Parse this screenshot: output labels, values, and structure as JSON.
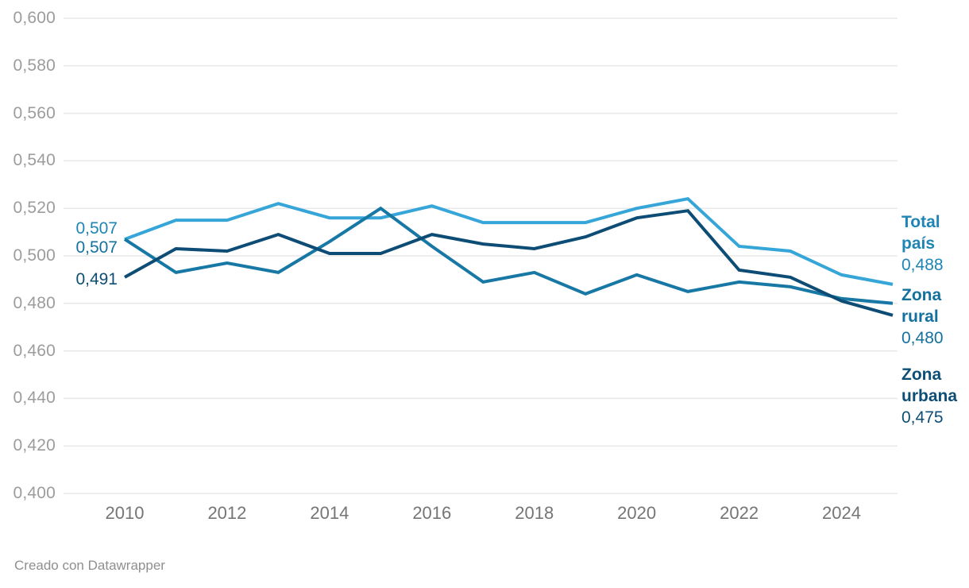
{
  "chart_data": {
    "type": "line",
    "x": [
      2010,
      2011,
      2012,
      2013,
      2014,
      2015,
      2016,
      2017,
      2018,
      2019,
      2020,
      2021,
      2022,
      2023,
      2024,
      2025
    ],
    "series": [
      {
        "name": "Total país",
        "values": [
          0.507,
          0.515,
          0.515,
          0.522,
          0.516,
          0.516,
          0.521,
          0.514,
          0.514,
          0.514,
          0.52,
          0.524,
          0.504,
          0.502,
          0.492,
          0.488
        ],
        "color": "#36a5d8",
        "label_color": "#1f85b4",
        "start_label": "0,507",
        "end_label": "0,488"
      },
      {
        "name": "Zona rural",
        "values": [
          0.507,
          0.493,
          0.497,
          0.493,
          0.506,
          0.52,
          0.504,
          0.489,
          0.493,
          0.484,
          0.492,
          0.485,
          0.489,
          0.487,
          0.482,
          0.48
        ],
        "color": "#1878a5",
        "label_color": "#14719e",
        "start_label": "0,507",
        "end_label": "0,480"
      },
      {
        "name": "Zona urbana",
        "values": [
          0.491,
          0.503,
          0.502,
          0.509,
          0.501,
          0.501,
          0.509,
          0.505,
          0.503,
          0.508,
          0.516,
          0.519,
          0.494,
          0.491,
          0.481,
          0.475
        ],
        "color": "#0d4d75",
        "label_color": "#0e4e76",
        "start_label": "0,491",
        "end_label": "0,475"
      }
    ],
    "ylim": [
      0.4,
      0.6
    ],
    "y_ticks": [
      "0,600",
      "0,580",
      "0,560",
      "0,540",
      "0,520",
      "0,500",
      "0,480",
      "0,460",
      "0,440",
      "0,420",
      "0,400"
    ],
    "x_ticks": [
      "2010",
      "2012",
      "2014",
      "2016",
      "2018",
      "2020",
      "2022",
      "2024"
    ],
    "grid": true,
    "legend_position": "right-direct-labels"
  },
  "colors": {
    "grid": "#e8e8e8",
    "y_tick_text": "#9c9c9c",
    "x_tick_text": "#757575",
    "credit_text": "#8f8f8f",
    "background": "#ffffff"
  },
  "footer": {
    "credit": "Creado con Datawrapper"
  }
}
